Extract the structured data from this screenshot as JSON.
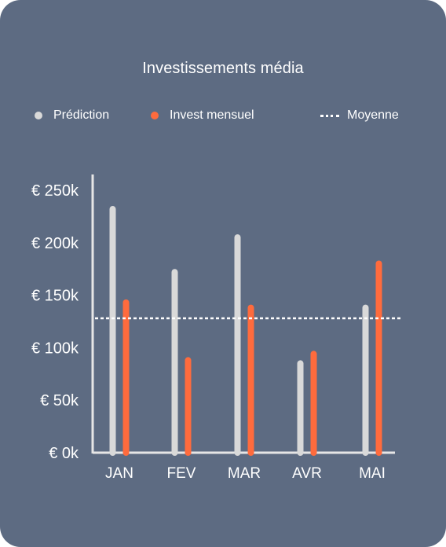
{
  "colors": {
    "background": "#5d6b82",
    "prediction": "#d9d9d9",
    "invest": "#ff6b3d",
    "average_line": "#ffffff",
    "axis": "#e6e6e6"
  },
  "legend": {
    "prediction": "Prédiction",
    "invest": "Invest mensuel",
    "average": "Moyenne"
  },
  "chart_data": {
    "type": "bar",
    "title": "Investissements média",
    "categories": [
      "JAN",
      "FEV",
      "MAR",
      "AVR",
      "MAI"
    ],
    "series": [
      {
        "name": "Prédiction",
        "values": [
          235000,
          175000,
          208000,
          88000,
          141000
        ]
      },
      {
        "name": "Invest mensuel",
        "values": [
          146000,
          91000,
          141000,
          97000,
          183000
        ]
      }
    ],
    "average": 128000,
    "ylim": [
      0,
      250000
    ],
    "yticks": [
      0,
      50000,
      100000,
      150000,
      200000,
      250000
    ],
    "ytick_labels": [
      "€ 0k",
      "€ 50k",
      "€ 100k",
      "€ 150k",
      "€ 200k",
      "€ 250k"
    ],
    "xlabel": "",
    "ylabel": "",
    "grid": false,
    "legend_position": "top"
  }
}
